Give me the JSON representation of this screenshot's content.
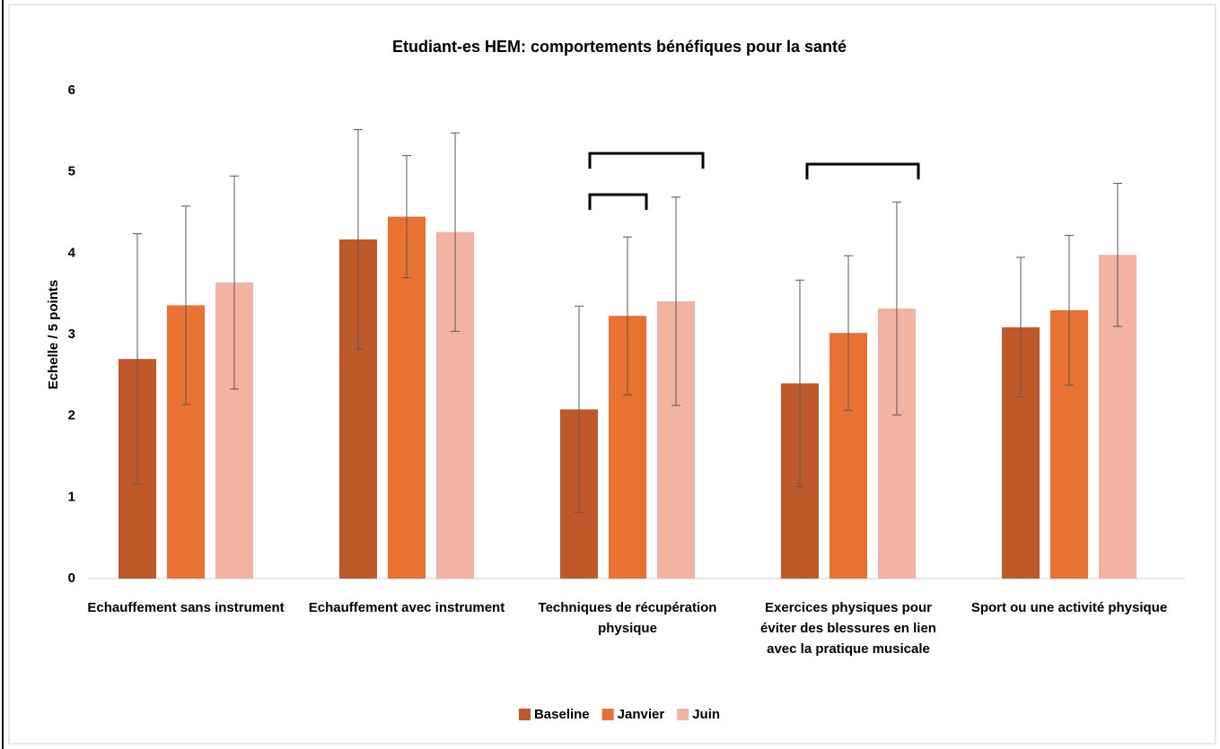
{
  "chart_data": {
    "type": "bar",
    "title": "Etudiant-es HEM: comportements bénéfiques pour la santé",
    "y_label": "Echelle / 5 points",
    "categories": [
      "Echauffement sans instrument",
      "Echauffement avec instrument",
      "Techniques de récupération physique",
      "Exercices physiques pour éviter des blessures en lien avec la pratique musicale",
      "Sport ou une activité physique"
    ],
    "series": [
      {
        "name": "Baseline",
        "color": "#c0592a",
        "values": [
          2.7,
          4.17,
          2.08,
          2.4,
          3.09
        ],
        "errors": [
          1.54,
          1.35,
          1.27,
          1.27,
          0.86
        ]
      },
      {
        "name": "Janvier",
        "color": "#e97132",
        "values": [
          3.36,
          4.45,
          3.23,
          3.02,
          3.3
        ],
        "errors": [
          1.22,
          0.75,
          0.97,
          0.95,
          0.92
        ]
      },
      {
        "name": "Juin",
        "color": "#f2b3a3",
        "values": [
          3.64,
          4.26,
          3.41,
          3.32,
          3.98
        ],
        "errors": [
          1.31,
          1.22,
          1.28,
          1.31,
          0.88
        ]
      }
    ],
    "ylim": [
      0,
      6
    ],
    "yticks": [
      0,
      1,
      2,
      3,
      4,
      5,
      6
    ],
    "grid": false,
    "legend": "bottom"
  }
}
